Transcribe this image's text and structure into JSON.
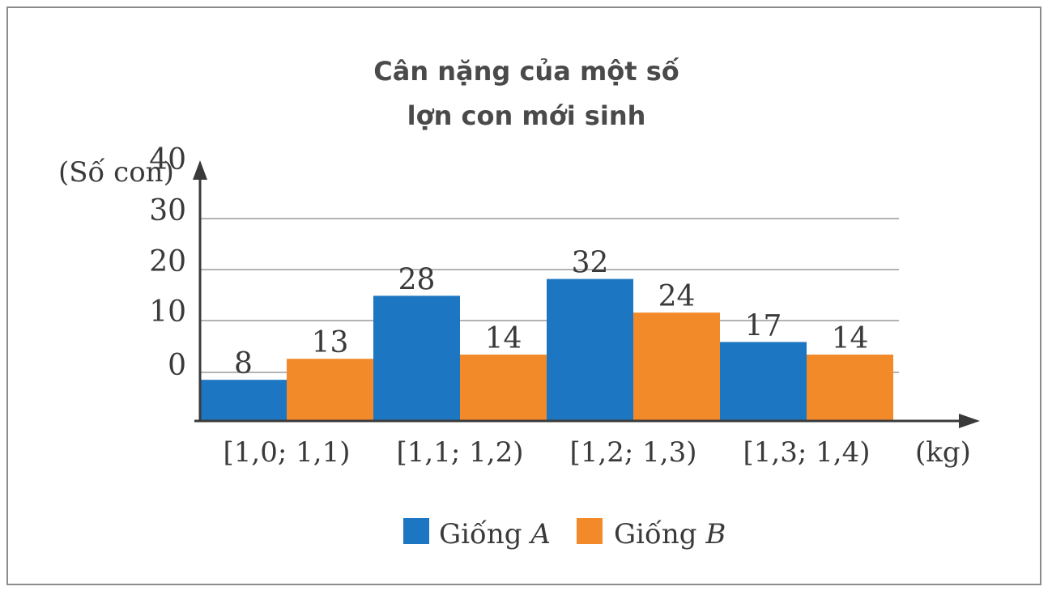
{
  "chart_data": {
    "type": "bar",
    "title_lines": [
      "Cân nặng của một số",
      "lợn con mới sinh"
    ],
    "ylabel": "(Số con)",
    "xlabel": "(kg)",
    "categories": [
      "[1,0; 1,1)",
      "[1,1; 1,2)",
      "[1,2; 1,3)",
      "[1,3; 1,4)"
    ],
    "yticks": [
      "0",
      "10",
      "20",
      "30",
      "40"
    ],
    "series": [
      {
        "name": "Giống A",
        "name_base": "Giống ",
        "name_var": "A",
        "color": "#1d76c2",
        "values": [
          8,
          28,
          32,
          17
        ]
      },
      {
        "name": "Giống B",
        "name_base": "Giống ",
        "name_var": "B",
        "color": "#f28a2a",
        "values": [
          13,
          14,
          24,
          14
        ]
      }
    ],
    "value_labels": [
      [
        "8",
        "28",
        "32",
        "17"
      ],
      [
        "13",
        "14",
        "24",
        "14"
      ]
    ],
    "ylim": [
      0,
      40
    ],
    "grid": true,
    "legend": "bottom-center"
  }
}
